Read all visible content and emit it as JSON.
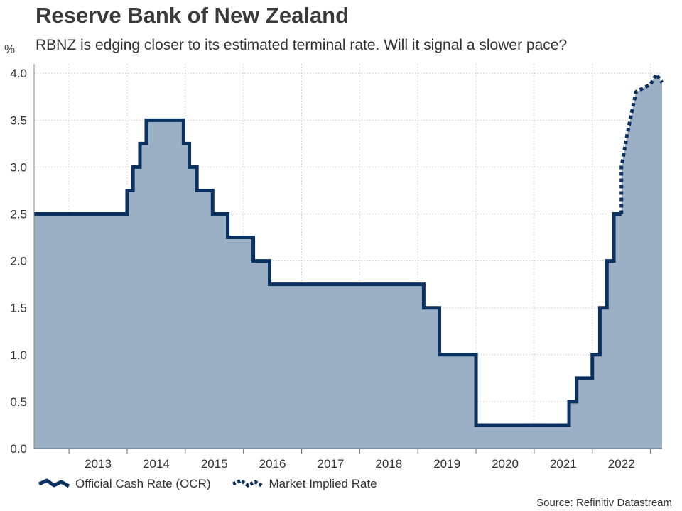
{
  "chart_data": {
    "type": "line",
    "title": "Reserve Bank of New Zealand",
    "subtitle": "RBNZ is edging closer to its estimated terminal rate. Will it signal a slower pace?",
    "ylabel": "%",
    "ylim": [
      0,
      4.1
    ],
    "xlim": [
      2012.4,
      2023.2
    ],
    "yticks": [
      "0.0",
      "0.5",
      "1.0",
      "1.5",
      "2.0",
      "2.5",
      "3.0",
      "3.5",
      "4.0"
    ],
    "xticks": [
      "2013",
      "2014",
      "2015",
      "2016",
      "2017",
      "2018",
      "2019",
      "2020",
      "2021",
      "2022"
    ],
    "grid": true,
    "area_fill": true,
    "series": [
      {
        "name": "Official Cash Rate (OCR)",
        "style": "solid",
        "color": "#0b3160",
        "x": [
          2012.4,
          2014.0,
          2014.0,
          2014.1,
          2014.1,
          2014.22,
          2014.22,
          2014.33,
          2014.33,
          2014.97,
          2014.97,
          2015.07,
          2015.07,
          2015.2,
          2015.2,
          2015.47,
          2015.47,
          2015.73,
          2015.73,
          2016.17,
          2016.17,
          2016.45,
          2016.45,
          2019.1,
          2019.1,
          2019.37,
          2019.37,
          2020.0,
          2020.0,
          2021.6,
          2021.6,
          2021.73,
          2021.73,
          2022.0,
          2022.0,
          2022.13,
          2022.13,
          2022.25,
          2022.25,
          2022.37,
          2022.37,
          2022.5
        ],
        "values": [
          2.5,
          2.5,
          2.75,
          2.75,
          3.0,
          3.0,
          3.25,
          3.25,
          3.5,
          3.5,
          3.25,
          3.25,
          3.0,
          3.0,
          2.75,
          2.75,
          2.5,
          2.5,
          2.25,
          2.25,
          2.0,
          2.0,
          1.75,
          1.75,
          1.5,
          1.5,
          1.0,
          1.0,
          0.25,
          0.25,
          0.5,
          0.5,
          0.75,
          0.75,
          1.0,
          1.0,
          1.5,
          1.5,
          2.0,
          2.0,
          2.5,
          2.5
        ]
      },
      {
        "name": "Market Implied Rate",
        "style": "dotted",
        "color": "#0b3160",
        "x": [
          2022.5,
          2022.5,
          2022.6,
          2022.75,
          2022.9,
          2023.0,
          2023.1,
          2023.2
        ],
        "values": [
          2.5,
          3.0,
          3.35,
          3.8,
          3.85,
          3.88,
          3.99,
          3.9
        ]
      }
    ]
  },
  "legend": {
    "ocr": "Official Cash Rate (OCR)",
    "market": "Market Implied Rate"
  },
  "source": "Source: Refinitiv Datastream",
  "colors": {
    "line": "#0b3160",
    "fill": "#9bb0c5",
    "grid": "#d8d8d8"
  }
}
